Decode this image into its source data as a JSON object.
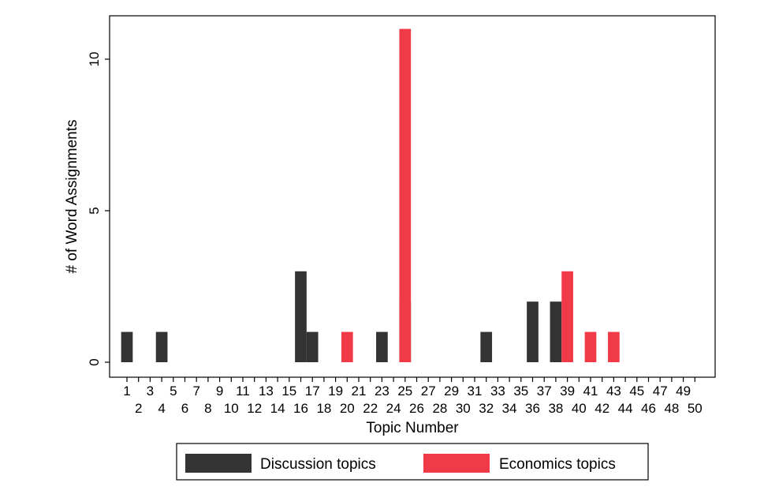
{
  "chart_data": {
    "type": "bar",
    "xlabel": "Topic Number",
    "ylabel": "# of Word Assignments",
    "x_categories": [
      1,
      2,
      3,
      4,
      5,
      6,
      7,
      8,
      9,
      10,
      11,
      12,
      13,
      14,
      15,
      16,
      17,
      18,
      19,
      20,
      21,
      22,
      23,
      24,
      25,
      26,
      27,
      28,
      29,
      30,
      31,
      32,
      33,
      34,
      35,
      36,
      37,
      38,
      39,
      40,
      41,
      42,
      43,
      44,
      45,
      46,
      47,
      48,
      49,
      50
    ],
    "yticks": [
      0,
      5,
      10
    ],
    "ylim": [
      0,
      11
    ],
    "legend_position": "bottom",
    "grid": false,
    "series": [
      {
        "name": "Discussion topics",
        "color": "#333333",
        "points": [
          {
            "x": 1,
            "y": 1
          },
          {
            "x": 4,
            "y": 1
          },
          {
            "x": 16,
            "y": 3
          },
          {
            "x": 17,
            "y": 1
          },
          {
            "x": 23,
            "y": 1
          },
          {
            "x": 25,
            "y": 2
          },
          {
            "x": 32,
            "y": 1
          },
          {
            "x": 36,
            "y": 2
          },
          {
            "x": 38,
            "y": 2
          }
        ]
      },
      {
        "name": "Economics topics",
        "color": "#f03a47",
        "points": [
          {
            "x": 20,
            "y": 1
          },
          {
            "x": 25,
            "y": 11
          },
          {
            "x": 39,
            "y": 3
          },
          {
            "x": 41,
            "y": 1
          },
          {
            "x": 43,
            "y": 1
          }
        ]
      }
    ]
  }
}
